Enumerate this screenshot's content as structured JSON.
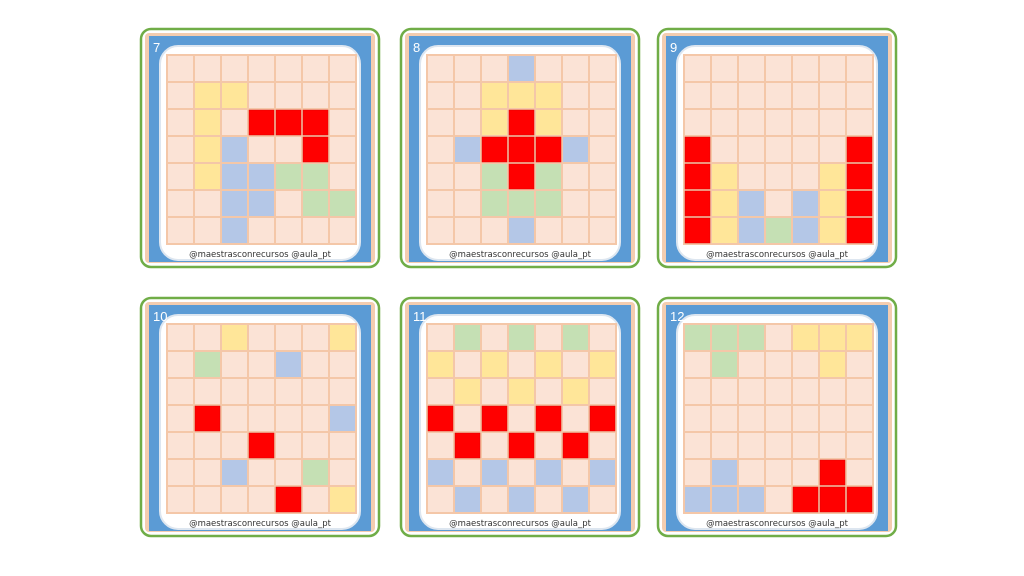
{
  "credit": "@maestrasconrecursos  @aula_pt",
  "colors": {
    ".": "#fbe3d6",
    "R": "#ff0000",
    "Y": "#ffe699",
    "B": "#b4c7e7",
    "G": "#c5e0b4"
  },
  "cards": [
    {
      "number": "7",
      "rows": [
        ".......",
        ".YY....",
        ".Y.RRR.",
        ".YB..R.",
        ".YBBGG.",
        "..BB.GG",
        "..B...."
      ]
    },
    {
      "number": "8",
      "rows": [
        "...B...",
        "..YYY..",
        "..YRY..",
        ".BRRRB.",
        "..GRG..",
        "..GGG..",
        "...B..."
      ]
    },
    {
      "number": "9",
      "rows": [
        ".......",
        ".......",
        ".......",
        "R.....R",
        "RY...YR",
        "RYB.BYR",
        "RYBGBYR"
      ]
    },
    {
      "number": "10",
      "rows": [
        "..Y...Y",
        ".G..B..",
        ".......",
        ".R....B",
        "...R...",
        "..B..G.",
        "....R.Y"
      ]
    },
    {
      "number": "11",
      "rows": [
        ".G.G.G.",
        "Y.Y.Y.Y",
        ".Y.Y.Y.",
        "R.R.R.R",
        ".R.R.R.",
        "B.B.B.B",
        ".B.B.B."
      ]
    },
    {
      "number": "12",
      "rows": [
        "GGG.YYY",
        ".G...Y.",
        ".......",
        ".......",
        ".......",
        ".B...R.",
        "BBB.RRR"
      ]
    }
  ]
}
